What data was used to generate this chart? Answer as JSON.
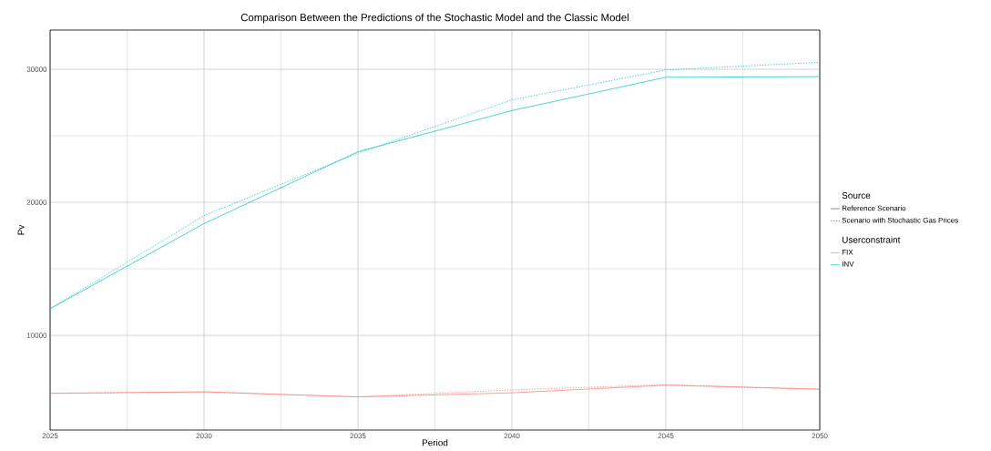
{
  "chart_data": {
    "type": "line",
    "title": "Comparison Between the Predictions of the Stochastic Model and the Classic Model",
    "xlabel": "Period",
    "ylabel": "Pv",
    "x": [
      2025,
      2030,
      2035,
      2040,
      2045,
      2050
    ],
    "series": [
      {
        "name": "FIX",
        "color": "#f8766d",
        "line_style": "solid",
        "values": [
          5640,
          5750,
          5370,
          5680,
          6250,
          5950
        ]
      },
      {
        "color": "#f8766d",
        "line_style": "dotted",
        "values": [
          5640,
          5750,
          5370,
          5900,
          6290,
          5950
        ]
      },
      {
        "name": "INV",
        "color": "#00bfc4",
        "line_style": "solid",
        "values": [
          12000,
          18400,
          23800,
          26900,
          29400,
          29450
        ]
      },
      {
        "color": "#00bfc4",
        "line_style": "dotted",
        "values": [
          12000,
          19000,
          23700,
          27700,
          29950,
          30530
        ]
      }
    ],
    "xlim": [
      2025,
      2050
    ],
    "ylim": [
      2880,
      32950
    ],
    "xticks": [
      2025,
      2030,
      2035,
      2040,
      2045,
      2050
    ],
    "yticks": [
      10000,
      20000,
      30000
    ],
    "grid": true,
    "legend": "right",
    "marker": "none",
    "legend_title": "Userconstraint",
    "annotations": [
      "Source",
      "Reference Scenario",
      "Scenario with Stochastic Gas Prices"
    ]
  }
}
